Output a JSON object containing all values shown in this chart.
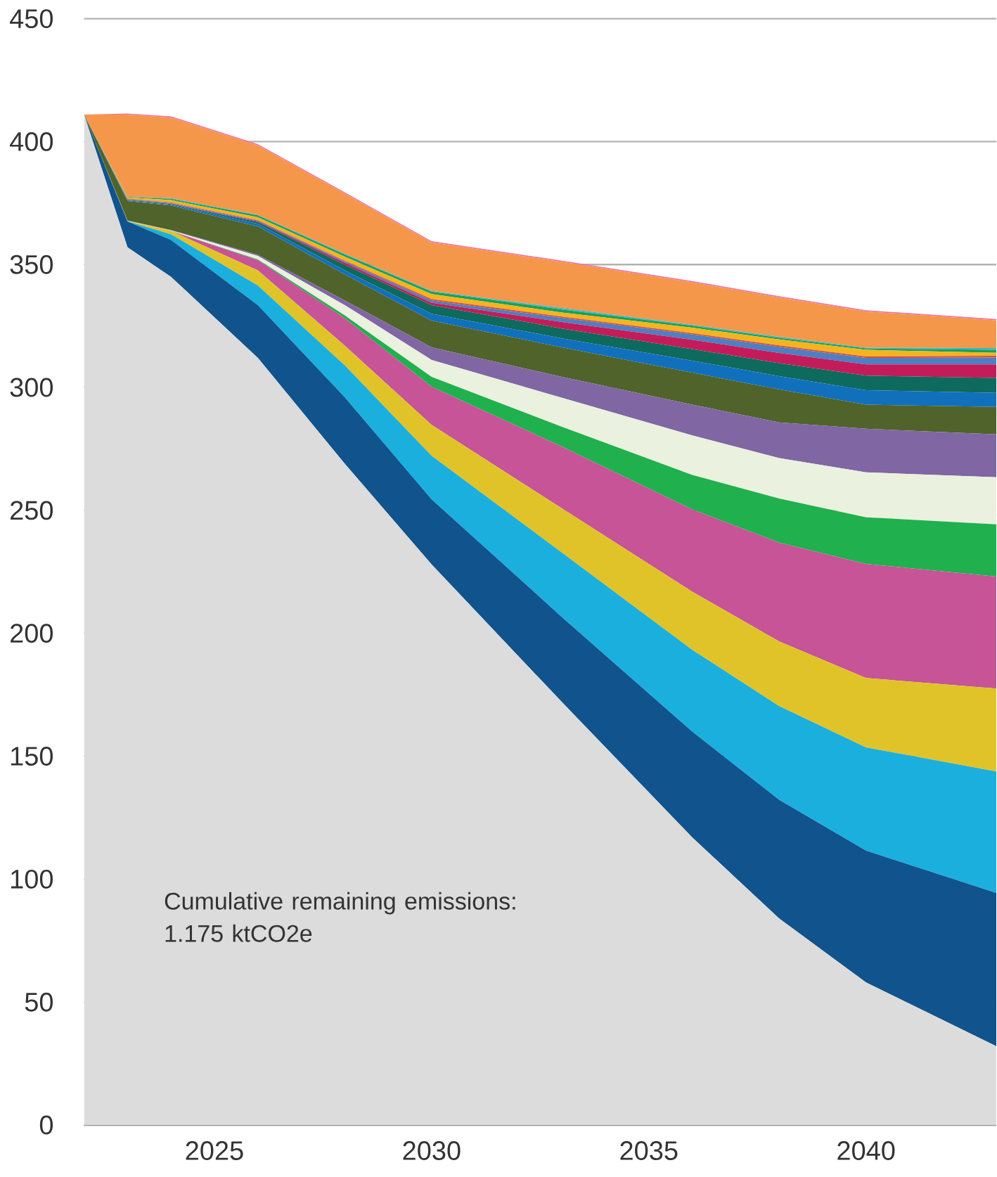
{
  "chart_data": {
    "type": "area",
    "stacked": true,
    "x": [
      2022,
      2023,
      2024,
      2026,
      2028,
      2030,
      2033,
      2036,
      2038,
      2040,
      2043
    ],
    "xlim": [
      2022,
      2043
    ],
    "xticks": [
      2025,
      2030,
      2035,
      2040
    ],
    "ylim": [
      0,
      450
    ],
    "yticks": [
      0,
      50,
      100,
      150,
      200,
      250,
      300,
      350,
      400,
      450
    ],
    "grid": "y",
    "annotations": [
      "Cumulative remaining emissions: 1.175 ktCO2e"
    ],
    "series": [
      {
        "color": "#dcdcdc",
        "values": [
          411,
          357,
          345,
          312,
          269,
          228,
          172,
          117,
          84,
          58,
          32
        ]
      },
      {
        "color": "#11538c",
        "values": [
          0,
          10.5,
          15,
          21.5,
          27,
          26.5,
          34.6,
          43,
          48.3,
          53.6,
          62.4
        ]
      },
      {
        "color": "#1bafde",
        "values": [
          0,
          0.1,
          2.3,
          8,
          13,
          17.7,
          26.2,
          33.3,
          38.1,
          42,
          49.4
        ]
      },
      {
        "color": "#e0c328",
        "values": [
          0,
          0.1,
          1.4,
          6.1,
          8,
          12.6,
          18,
          23.6,
          26.3,
          28.2,
          33.7
        ]
      },
      {
        "color": "#c65496",
        "values": [
          0,
          0,
          0,
          4.2,
          11.2,
          15.5,
          25.1,
          33.5,
          40.2,
          46.4,
          45.6
        ]
      },
      {
        "color": "#20b04e",
        "values": [
          0,
          0,
          0,
          0.3,
          1.1,
          4,
          8.1,
          14,
          17.9,
          19,
          21.2
        ]
      },
      {
        "color": "#eaf1de",
        "values": [
          0,
          0.1,
          0.2,
          1.4,
          4.2,
          6.9,
          11.8,
          16.1,
          16.5,
          18.3,
          19.2
        ]
      },
      {
        "color": "#8066a3",
        "values": [
          0,
          0.1,
          0.1,
          0.5,
          1.9,
          5.1,
          8.5,
          12.5,
          14.5,
          17.7,
          17.4
        ]
      },
      {
        "color": "#4f632b",
        "values": [
          0,
          7.9,
          10,
          11.5,
          10.6,
          10.9,
          12,
          13,
          13.4,
          9.8,
          11.2
        ]
      },
      {
        "color": "#1170bc",
        "values": [
          0,
          0.3,
          0.3,
          1.1,
          1.6,
          2.8,
          3.7,
          4.9,
          5.4,
          5.9,
          5.7
        ]
      },
      {
        "color": "#0e6a5c",
        "values": [
          0,
          0.2,
          0.3,
          0.7,
          2.3,
          3.5,
          4,
          4.7,
          5.3,
          5.9,
          6.1
        ]
      },
      {
        "color": "#c41c5a",
        "values": [
          0,
          0.1,
          0.1,
          0.3,
          0.8,
          1,
          2.6,
          3.8,
          4.1,
          4.6,
          5.5
        ]
      },
      {
        "color": "#4e7fc1",
        "values": [
          0,
          0.2,
          0.3,
          0.3,
          0.6,
          0.9,
          1.7,
          2.2,
          2.5,
          2.6,
          2.8
        ]
      },
      {
        "color": "#e04a3a",
        "values": [
          0,
          0.2,
          0.2,
          0.2,
          0.3,
          0.6,
          0.5,
          0.5,
          0.6,
          0.6,
          0.7
        ]
      },
      {
        "color": "#f4b41d",
        "values": [
          0,
          0.5,
          1,
          1.1,
          1.6,
          2,
          1.7,
          2.2,
          2.4,
          2.7,
          1.2
        ]
      },
      {
        "color": "#18a05a",
        "values": [
          0,
          0.2,
          0.5,
          0.8,
          0.9,
          1,
          1.2,
          0.8,
          0.7,
          0.6,
          1.2
        ]
      },
      {
        "color": "#3bb7c5",
        "values": [
          0,
          0.1,
          0.3,
          0.2,
          0.3,
          0.3,
          0.6,
          0.4,
          0.4,
          0.3,
          0.7
        ]
      },
      {
        "color": "#f5974a",
        "values": [
          0,
          33.4,
          32.8,
          28.3,
          24.5,
          19.7,
          18.8,
          17.3,
          16,
          14.7,
          11.3
        ]
      },
      {
        "color": "#ee72a6",
        "values": [
          0,
          0.4,
          0.5,
          0.5,
          0.5,
          0.5,
          0.5,
          0.5,
          0.5,
          0.5,
          0.5
        ]
      }
    ]
  }
}
